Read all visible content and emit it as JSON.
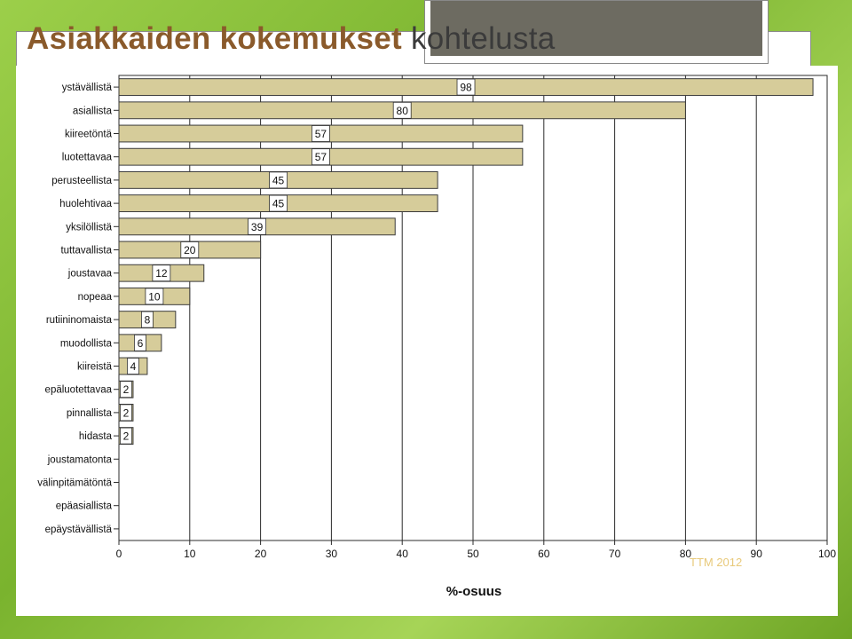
{
  "slide": {
    "title_part1": "Asiakkaiden kokemukset",
    "title_part2": "kohtelusta",
    "watermark": "TTM 2012"
  },
  "colors": {
    "bar_fill": "#d6cc9a",
    "bar_stroke": "#3c3c3c",
    "grid": "#2b2b2b",
    "accent": "#8a5a2b"
  },
  "chart_data": {
    "type": "bar",
    "orientation": "horizontal",
    "title": "",
    "xlabel": "%-osuus",
    "ylabel": "",
    "xlim": [
      0,
      100
    ],
    "x_ticks": [
      0,
      10,
      20,
      30,
      40,
      50,
      60,
      70,
      80,
      90,
      100
    ],
    "grid": true,
    "categories": [
      "ystävällistä",
      "asiallista",
      "kiireetöntä",
      "luotettavaa",
      "perusteellista",
      "huolehtivaa",
      "yksilöllistä",
      "tuttavallista",
      "joustavaa",
      "nopeaa",
      "rutiininomaista",
      "muodollista",
      "kiireistä",
      "epäluotettavaa",
      "pinnallista",
      "hidasta",
      "joustamatonta",
      "välinpitämätöntä",
      "epäasiallista",
      "epäystävällistä"
    ],
    "values": [
      98,
      80,
      57,
      57,
      45,
      45,
      39,
      20,
      12,
      10,
      8,
      6,
      4,
      2,
      2,
      2,
      0,
      0,
      0,
      0
    ],
    "data_labels": [
      "98",
      "80",
      "57",
      "57",
      "45",
      "45",
      "39",
      "20",
      "12",
      "10",
      "8",
      "6",
      "4",
      "2",
      "2",
      "2",
      "",
      "",
      "",
      ""
    ]
  }
}
